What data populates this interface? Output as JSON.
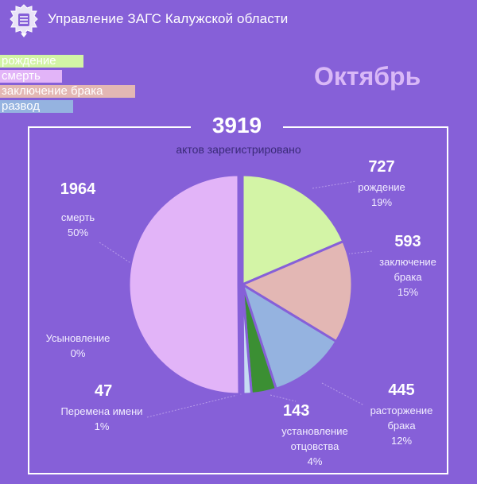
{
  "header": {
    "title": "Управление ЗАГС Калужской области"
  },
  "legend": [
    {
      "label": "рождение",
      "color": "#d3f4a6"
    },
    {
      "label": "смерть",
      "color": "#e2b4f8"
    },
    {
      "label": "заключение брака",
      "color": "#e3b7b4"
    },
    {
      "label": "развод",
      "color": "#95b3e0"
    }
  ],
  "month": "Октябрь",
  "total": {
    "value": "3919",
    "caption": "актов зарегистрировано"
  },
  "chart_data": {
    "type": "pie",
    "total": 3919,
    "slices": [
      {
        "name": "рождение",
        "value": 727,
        "percent": "19%",
        "color": "#d3f4a6"
      },
      {
        "name": "заключение брака",
        "value": 593,
        "percent": "15%",
        "color": "#e3b7b4"
      },
      {
        "name": "расторжение брака",
        "value": 445,
        "percent": "12%",
        "color": "#95b3e0"
      },
      {
        "name": "установление отцовства",
        "value": 143,
        "percent": "4%",
        "color": "#3b8f33"
      },
      {
        "name": "Перемена имени",
        "value": 47,
        "percent": "1%",
        "color": "#c6dbf2"
      },
      {
        "name": "Усыновление",
        "value": 0,
        "percent": "0%",
        "color": "#8a6ad8"
      },
      {
        "name": "смерть",
        "value": 1964,
        "percent": "50%",
        "color": "#e2b4f8"
      }
    ]
  },
  "labels": {
    "birth": {
      "value": "727",
      "name": "рождение",
      "percent": "19%"
    },
    "marriage": {
      "value": "593",
      "name1": "заключение",
      "name2": "брака",
      "percent": "15%"
    },
    "divorce": {
      "value": "445",
      "name1": "расторжение",
      "name2": "брака",
      "percent": "12%"
    },
    "paternity": {
      "value": "143",
      "name1": "установление",
      "name2": "отцовства",
      "percent": "4%"
    },
    "namechange": {
      "value": "47",
      "name": "Перемена имени",
      "percent": "1%"
    },
    "adoption": {
      "name": "Усыновление",
      "percent": "0%"
    },
    "death": {
      "value": "1964",
      "name": "смерть",
      "percent": "50%"
    }
  }
}
